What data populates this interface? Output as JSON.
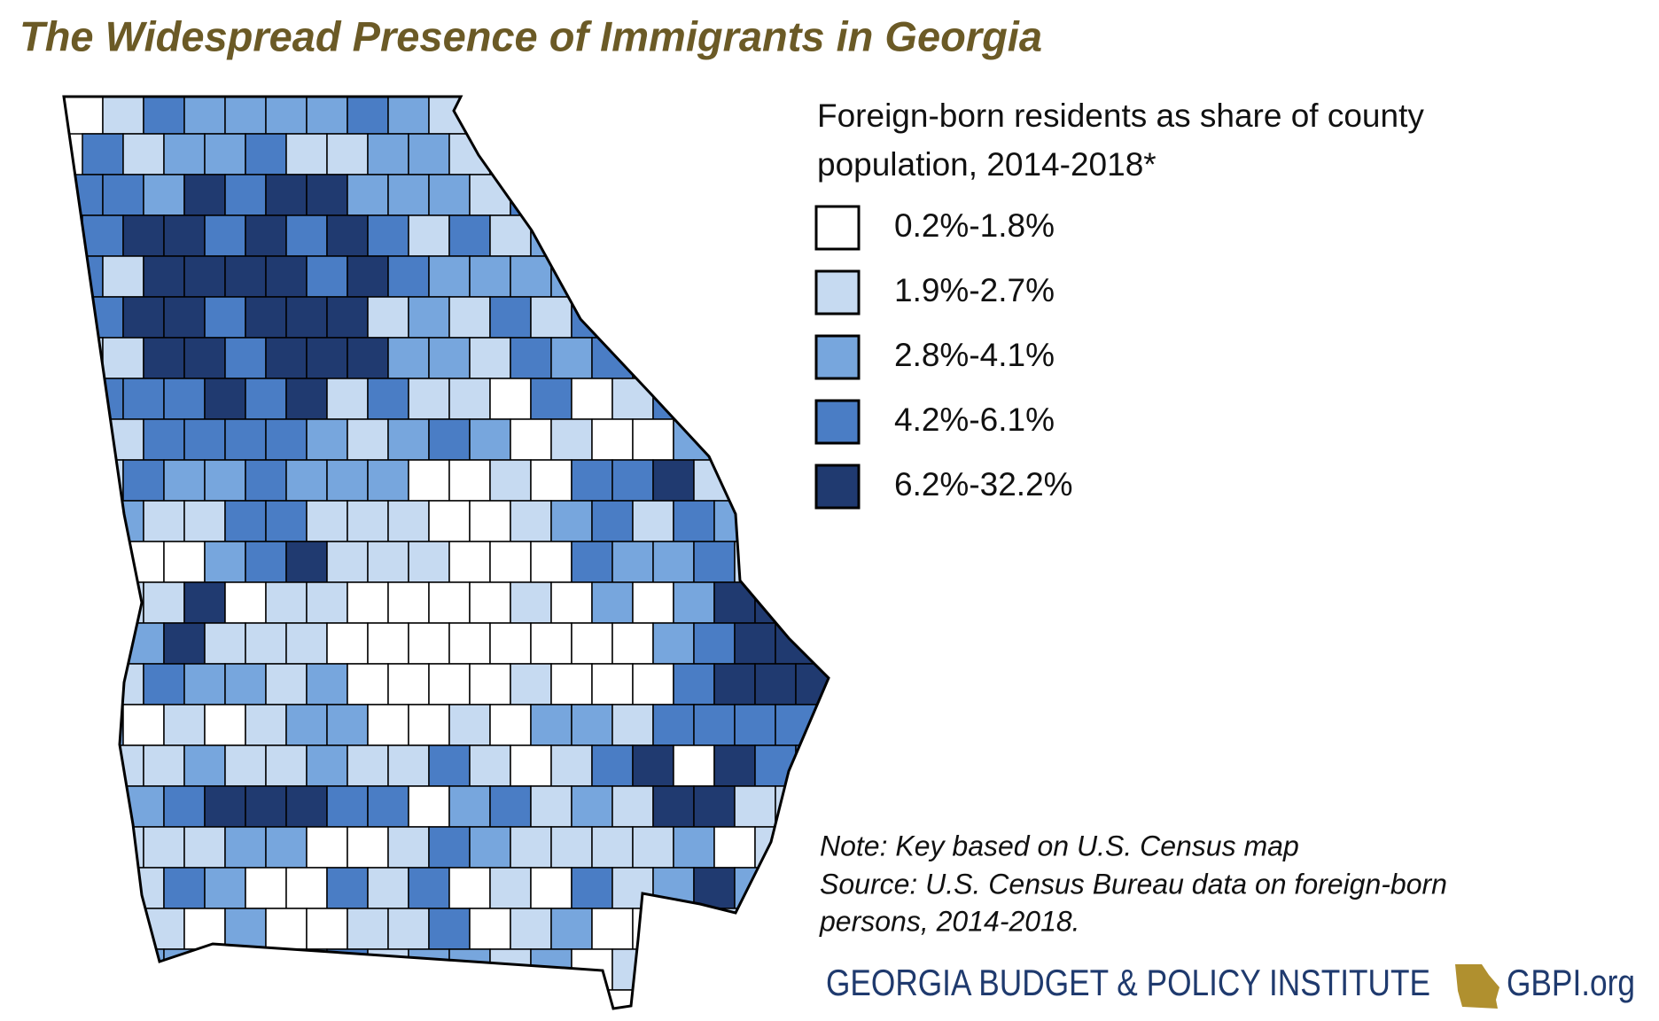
{
  "header": {
    "title": "The Widespread Presence of Immigrants in Georgia"
  },
  "legend": {
    "title_lines": [
      "Foreign-born residents as share of county",
      "population, 2014-2018*"
    ],
    "items": [
      {
        "label": "0.2%-1.8%",
        "color": "#ffffff"
      },
      {
        "label": "1.9%-2.7%",
        "color": "#c6daf1"
      },
      {
        "label": "2.8%-4.1%",
        "color": "#77a6dd"
      },
      {
        "label": "4.2%-6.1%",
        "color": "#4a7dc5"
      },
      {
        "label": "6.2%-32.2%",
        "color": "#203a70"
      }
    ]
  },
  "notes": [
    "Note: Key based on U.S. Census map",
    "Source: U.S. Census Bureau data on foreign-born",
    "persons, 2014-2018."
  ],
  "footer": {
    "organization": "GEORGIA BUDGET & POLICY INSTITUTE",
    "website": "GBPI.org"
  }
}
